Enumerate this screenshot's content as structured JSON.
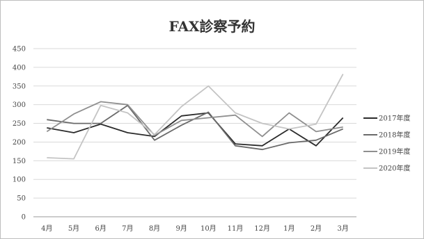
{
  "chart_data": {
    "type": "line",
    "title": "FAX診察予約",
    "categories": [
      "4月",
      "5月",
      "6月",
      "7月",
      "8月",
      "9月",
      "10月",
      "11月",
      "12月",
      "1月",
      "2月",
      "3月"
    ],
    "ylim": [
      0,
      450
    ],
    "yticks": [
      0,
      50,
      100,
      150,
      200,
      250,
      300,
      350,
      400,
      450
    ],
    "grid": true,
    "legend_position": "right",
    "series": [
      {
        "name": "2017年度",
        "color": "#2b2b2b",
        "values": [
          238,
          225,
          248,
          225,
          215,
          270,
          278,
          195,
          190,
          235,
          190,
          265
        ]
      },
      {
        "name": "2018年度",
        "color": "#6a6a6a",
        "values": [
          260,
          250,
          250,
          298,
          205,
          245,
          280,
          190,
          180,
          198,
          205,
          235
        ]
      },
      {
        "name": "2019年度",
        "color": "#8f8f8f",
        "values": [
          228,
          275,
          308,
          300,
          218,
          258,
          265,
          272,
          215,
          278,
          228,
          240
        ]
      },
      {
        "name": "2020年度",
        "color": "#c4c4c4",
        "values": [
          158,
          155,
          298,
          278,
          220,
          295,
          350,
          278,
          250,
          235,
          248,
          382
        ]
      }
    ]
  }
}
